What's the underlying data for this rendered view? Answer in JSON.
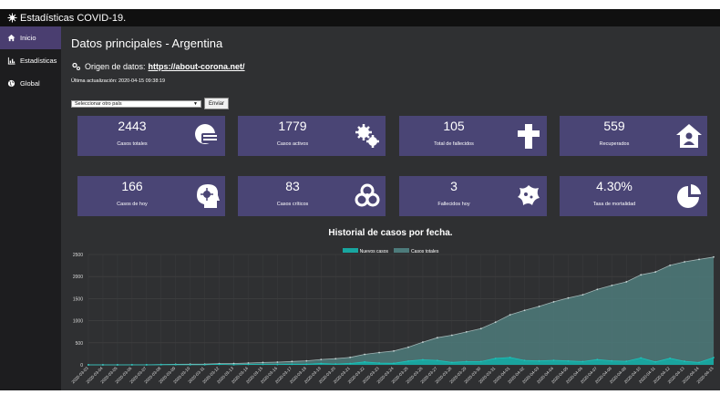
{
  "app": {
    "title": "Estadísticas COVID-19."
  },
  "sidebar": {
    "items": [
      {
        "label": "Inicio",
        "icon": "home-icon"
      },
      {
        "label": "Estadísticas",
        "icon": "bar-chart-icon"
      },
      {
        "label": "Global",
        "icon": "globe-icon"
      }
    ]
  },
  "header": {
    "title": "Datos principales - Argentina",
    "source_label": "Origen de datos:",
    "source_link": "https://about-corona.net/",
    "updated": "Última actualización: 2020-04-15 09:38:19"
  },
  "form": {
    "select_value": "Seleccionar otro país",
    "submit_label": "Enviar"
  },
  "cards": [
    {
      "value": "2443",
      "label": "Casos totales",
      "icon": "face-mask-icon"
    },
    {
      "value": "1779",
      "label": "Casos activos",
      "icon": "virus-cog-icon"
    },
    {
      "value": "105",
      "label": "Total de fallecidos",
      "icon": "cross-icon"
    },
    {
      "value": "559",
      "label": "Recuperados",
      "icon": "house-user-icon"
    },
    {
      "value": "166",
      "label": "Casos de hoy",
      "icon": "head-virus-icon"
    },
    {
      "value": "83",
      "label": "Casos críticos",
      "icon": "biohazard-icon"
    },
    {
      "value": "3",
      "label": "Fallecidos hoy",
      "icon": "virus-icon"
    },
    {
      "value": "4.30%",
      "label": "Tasa de mortalidad",
      "icon": "pie-chart-icon"
    }
  ],
  "colors": {
    "accent": "#4a3e70",
    "card_bg": "#4a4575",
    "new_cases": "#18a6a0",
    "total_cases": "#4d7b7b"
  },
  "chart_data": {
    "type": "area",
    "title": "Historial de casos por fecha.",
    "x": [
      "2020-03-03",
      "2020-03-04",
      "2020-03-05",
      "2020-03-06",
      "2020-03-07",
      "2020-03-08",
      "2020-03-09",
      "2020-03-10",
      "2020-03-11",
      "2020-03-12",
      "2020-03-13",
      "2020-03-14",
      "2020-03-15",
      "2020-03-16",
      "2020-03-17",
      "2020-03-18",
      "2020-03-19",
      "2020-03-20",
      "2020-03-21",
      "2020-03-22",
      "2020-03-23",
      "2020-03-24",
      "2020-03-25",
      "2020-03-26",
      "2020-03-27",
      "2020-03-28",
      "2020-03-29",
      "2020-03-30",
      "2020-03-31",
      "2020-04-01",
      "2020-04-02",
      "2020-04-03",
      "2020-04-04",
      "2020-04-05",
      "2020-04-06",
      "2020-04-07",
      "2020-04-08",
      "2020-04-09",
      "2020-04-10",
      "2020-04-11",
      "2020-04-12",
      "2020-04-13",
      "2020-04-14",
      "2020-04-15"
    ],
    "series": [
      {
        "name": "Nuevos casos",
        "values": [
          1,
          0,
          0,
          1,
          1,
          4,
          5,
          2,
          2,
          12,
          3,
          11,
          11,
          9,
          14,
          14,
          31,
          19,
          30,
          67,
          41,
          36,
          86,
          115,
          101,
          55,
          75,
          75,
          146,
          167,
          101,
          89,
          103,
          88,
          74,
          120,
          91,
          81,
          158,
          67,
          148,
          81,
          54,
          166
        ]
      },
      {
        "name": "Casos totales",
        "values": [
          1,
          1,
          1,
          2,
          3,
          7,
          12,
          14,
          16,
          28,
          31,
          42,
          53,
          62,
          76,
          90,
          121,
          140,
          170,
          237,
          278,
          314,
          400,
          515,
          616,
          671,
          746,
          821,
          967,
          1134,
          1235,
          1324,
          1427,
          1515,
          1589,
          1709,
          1800,
          1881,
          2039,
          2106,
          2254,
          2335,
          2389,
          2443
        ]
      }
    ],
    "ylim": [
      0,
      2500
    ],
    "yticks": [
      0,
      500,
      1000,
      1500,
      2000,
      2500
    ],
    "legend_position": "top-center",
    "grid": true
  }
}
